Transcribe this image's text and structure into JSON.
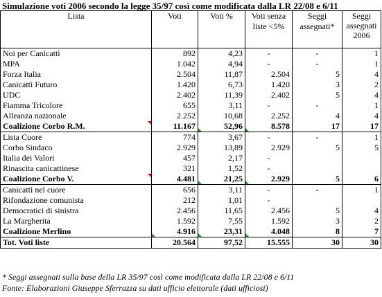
{
  "title": "Simulazione voti 2006 secondo la legge 35/97 così come modificata dalla LR 22/08 e 6/11",
  "headers": {
    "lista": "Lista",
    "voti": "Voti",
    "voti_pct": "Voti %",
    "voti_senza": "Voti senza liste <5%",
    "seggi_assegnati": "Seggi assegnati*",
    "seggi_2006": "Seggi assegnati 2006"
  },
  "groups": [
    {
      "rows": [
        {
          "lista": "Noi per Canicattì",
          "voti": "892",
          "pct": "4,23",
          "senza": "-",
          "seggi": "-",
          "seggi06": "1"
        },
        {
          "lista": "MPA",
          "voti": "1.042",
          "pct": "4,94",
          "senza": "-",
          "seggi": "-",
          "seggi06": "1"
        },
        {
          "lista": "Forza Italia",
          "voti": "2.504",
          "pct": "11,87",
          "senza": "2.504",
          "seggi": "5",
          "seggi06": "4"
        },
        {
          "lista": "Canicattì Futuro",
          "voti": "1.420",
          "pct": "6,73",
          "senza": "1.420",
          "seggi": "3",
          "seggi06": "2"
        },
        {
          "lista": "UDC",
          "voti": "2.402",
          "pct": "11,39",
          "senza": "2.402",
          "seggi": "5",
          "seggi06": "4"
        },
        {
          "lista": "Fiamma Tricolore",
          "voti": "655",
          "pct": "3,11",
          "senza": "-",
          "seggi": "-",
          "seggi06": "1"
        },
        {
          "lista": "Alleanza nazionale",
          "voti": "2.252",
          "pct": "10,68",
          "senza": "2.252",
          "seggi": "4",
          "seggi06": "4"
        }
      ],
      "total": {
        "lista": "Coalizione Corbo R.M.",
        "voti": "11.167",
        "pct": "52,96",
        "senza": "8.578",
        "seggi": "17",
        "seggi06": "17"
      }
    },
    {
      "rows": [
        {
          "lista": "Lista Cuore",
          "voti": "774",
          "pct": "3,67",
          "senza": "-",
          "seggi": "-",
          "seggi06": "1"
        },
        {
          "lista": "Corbo Sindaco",
          "voti": "2.929",
          "pct": "13,89",
          "senza": "2.929",
          "seggi": "5",
          "seggi06": "5"
        },
        {
          "lista": "Italia dei Valori",
          "voti": "457",
          "pct": "2,17",
          "senza": "-",
          "seggi": "",
          "seggi06": ""
        },
        {
          "lista": "Rinascita canicattinese",
          "voti": "321",
          "pct": "1,52",
          "senza": "-",
          "seggi": "",
          "seggi06": ""
        }
      ],
      "total": {
        "lista": "Coalizione Corbo V.",
        "voti": "4.481",
        "pct": "21,25",
        "senza": "2.929",
        "seggi": "5",
        "seggi06": "6"
      }
    },
    {
      "rows": [
        {
          "lista": "Canicattì nel cuore",
          "voti": "656",
          "pct": "3,11",
          "senza": "-",
          "seggi": "-",
          "seggi06": "1"
        },
        {
          "lista": "Rifondazione comunista",
          "voti": "212",
          "pct": "1,01",
          "senza": "-",
          "seggi": "",
          "seggi06": ""
        },
        {
          "lista": "Democratici di sinistra",
          "voti": "2.456",
          "pct": "11,65",
          "senza": "2.456",
          "seggi": "5",
          "seggi06": "4"
        },
        {
          "lista": "La Margherita",
          "voti": "1.592",
          "pct": "7,55",
          "senza": "1.592",
          "seggi": "3",
          "seggi06": "2"
        }
      ],
      "total": {
        "lista": "Coalizione Merlino",
        "voti": "4.916",
        "pct": "23,31",
        "senza": "4.048",
        "seggi": "8",
        "seggi06": "7"
      }
    }
  ],
  "grand_total": {
    "lista": "Tot. Voti liste",
    "voti": "20.564",
    "pct": "97,52",
    "senza": "15.555",
    "seggi": "30",
    "seggi06": "30"
  },
  "notes": {
    "footnote": "* Seggi assegnati sulla base della LR 35/97 così come modificata dalla LR 22/08 e 6/11",
    "source": "Fonte: Elaborazioni Giuseppe Sferrazza su dati ufficio elettorale (dati ufficiosi)"
  }
}
